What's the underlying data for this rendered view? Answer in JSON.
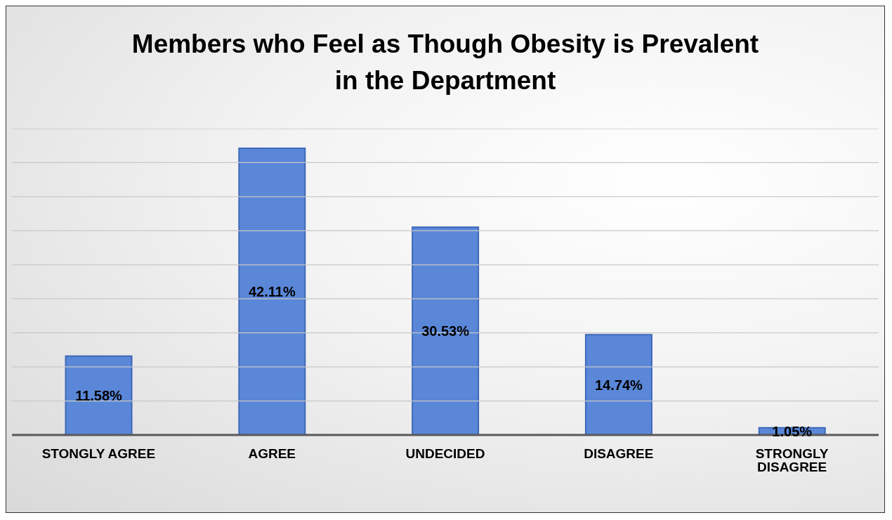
{
  "chart_data": {
    "type": "bar",
    "title": "Members who Feel as Though Obesity is Prevalent in the Department",
    "categories": [
      "STONGLY AGREE",
      "AGREE",
      "UNDECIDED",
      "DISAGREE",
      "STRONGLY DISAGREE"
    ],
    "values": [
      11.58,
      42.11,
      30.53,
      14.74,
      1.05
    ],
    "value_labels": [
      "11.58%",
      "42.11%",
      "30.53%",
      "14.74%",
      "1.05%"
    ],
    "color": "#5a87d8",
    "ylim": [
      0,
      45
    ],
    "yticks": [
      {
        "value": 0,
        "label": null
      },
      {
        "value": 5,
        "label": null
      },
      {
        "value": 10,
        "label": null
      },
      {
        "value": 15,
        "label": null
      },
      {
        "value": 20,
        "label": null
      },
      {
        "value": 25,
        "label": null
      },
      {
        "value": 30,
        "label": null
      },
      {
        "value": 35,
        "label": null
      },
      {
        "value": 40,
        "label": null
      },
      {
        "value": 45,
        "label": null
      }
    ],
    "grid": "y",
    "tick_labels": "x"
  }
}
